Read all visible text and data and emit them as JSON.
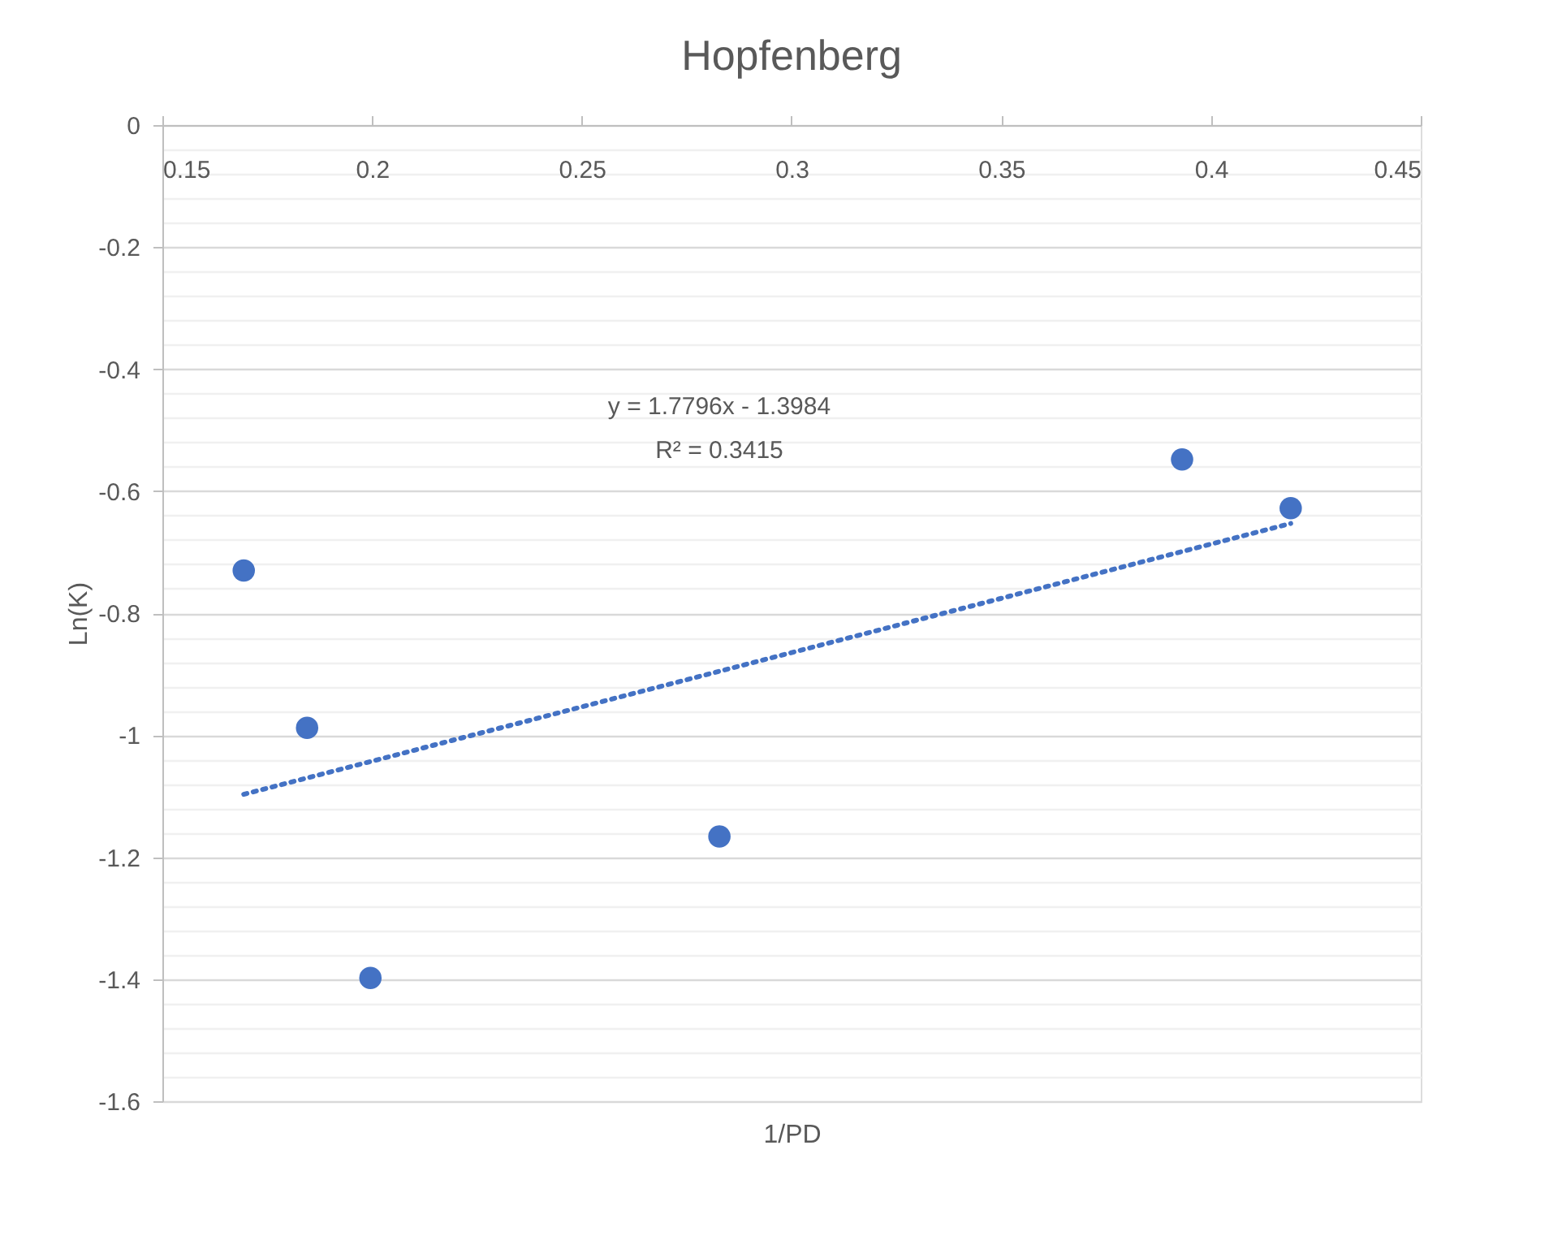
{
  "chart_data": {
    "type": "scatter",
    "title": "Hopfenberg",
    "xlabel": "1/PD",
    "ylabel": "Ln(K)",
    "xlim": [
      0.15,
      0.45
    ],
    "xticks": [
      0.15,
      0.2,
      0.25,
      0.3,
      0.35,
      0.4,
      0.45
    ],
    "ylim": [
      -1.6,
      0
    ],
    "yticks": [
      0,
      {
        "value": -0.04,
        "label": null
      },
      {
        "value": -0.08,
        "label": null
      },
      {
        "value": -0.12,
        "label": null
      },
      {
        "value": -0.16,
        "label": null
      },
      -0.2,
      {
        "value": -0.24,
        "label": null
      },
      {
        "value": -0.28,
        "label": null
      },
      {
        "value": -0.32,
        "label": null
      },
      {
        "value": -0.36,
        "label": null
      },
      -0.4,
      {
        "value": -0.44,
        "label": null
      },
      {
        "value": -0.48,
        "label": null
      },
      {
        "value": -0.52,
        "label": null
      },
      {
        "value": -0.56,
        "label": null
      },
      -0.6,
      {
        "value": -0.64,
        "label": null
      },
      {
        "value": -0.68,
        "label": null
      },
      {
        "value": -0.72,
        "label": null
      },
      {
        "value": -0.76,
        "label": null
      },
      -0.8,
      {
        "value": -0.84,
        "label": null
      },
      {
        "value": -0.88,
        "label": null
      },
      {
        "value": -0.92,
        "label": null
      },
      {
        "value": -0.96,
        "label": null
      },
      -1,
      {
        "value": -1.04,
        "label": null
      },
      {
        "value": -1.08,
        "label": null
      },
      {
        "value": -1.12,
        "label": null
      },
      {
        "value": -1.16,
        "label": null
      },
      -1.2,
      {
        "value": -1.24,
        "label": null
      },
      {
        "value": -1.28,
        "label": null
      },
      {
        "value": -1.32,
        "label": null
      },
      {
        "value": -1.36,
        "label": null
      },
      -1.4,
      {
        "value": -1.44,
        "label": null
      },
      {
        "value": -1.48,
        "label": null
      },
      {
        "value": -1.52,
        "label": null
      },
      {
        "value": -1.56,
        "label": null
      },
      -1.6
    ],
    "grid": "y",
    "marker": "circle",
    "series": [
      {
        "type": "scatter",
        "color": "#4472c4",
        "x": [
          0.1694,
          0.1845,
          0.1996,
          0.2828,
          0.3931,
          0.419
        ],
        "values": [
          -0.73,
          -0.988,
          -1.398,
          -1.166,
          -0.548,
          -0.628
        ]
      },
      {
        "type": "line",
        "color": "#4472c4",
        "line_style": "dotted",
        "marker": "none",
        "x": [
          0.1694,
          0.419
        ],
        "values": [
          -1.097,
          -0.653
        ]
      }
    ],
    "annotations": [
      "y = 1.7796x - 1.3984",
      "R² = 0.3415"
    ]
  }
}
